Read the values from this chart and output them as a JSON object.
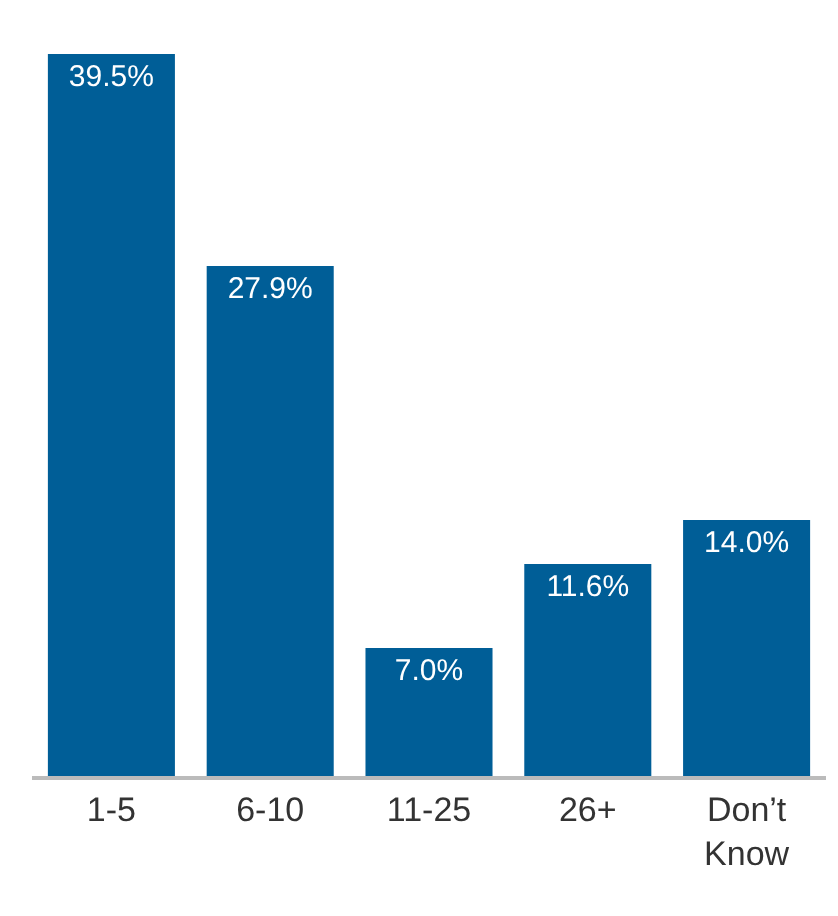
{
  "chart_data": {
    "type": "bar",
    "categories": [
      "1-5",
      "6-10",
      "11-25",
      "26+",
      "Don’t\nKnow"
    ],
    "values": [
      39.5,
      27.9,
      7.0,
      11.6,
      14.0
    ],
    "value_labels": [
      "39.5%",
      "27.9%",
      "7.0%",
      "11.6%",
      "14.0%"
    ],
    "color": "#005e97"
  }
}
